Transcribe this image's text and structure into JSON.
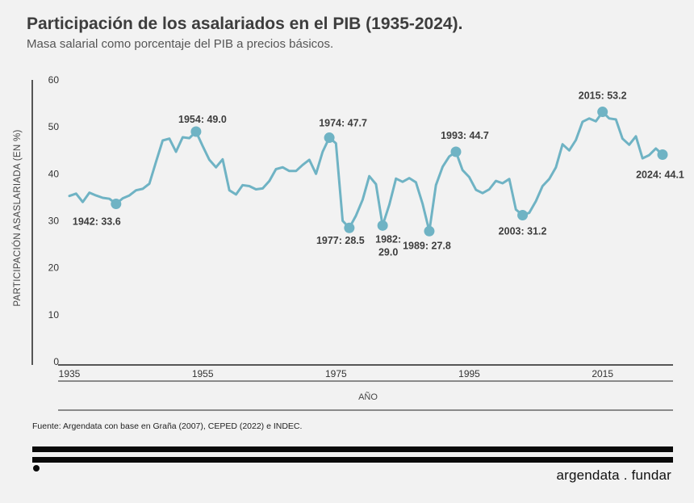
{
  "header": {
    "title": "Participación de los asalariados en el PIB (1935-2024).",
    "subtitle": "Masa salarial como porcentaje del PIB a precios básicos."
  },
  "footer": {
    "source": "Fuente: Argendata con base en Graña (2007), CEPED (2022) e INDEC.",
    "brand": "argendata . fundar"
  },
  "colors": {
    "line": "#6fb3c4",
    "marker": "#6fb3c4",
    "text": "#3d3d3d",
    "axis": "#222222"
  },
  "chart_data": {
    "type": "line",
    "xlabel": "AÑO",
    "ylabel": "PARTICIPACIÓN ASASLARIADA  (EN %)",
    "ylim": [
      0,
      60
    ],
    "xlim": [
      1935,
      2024
    ],
    "yticks": [
      0,
      10,
      20,
      30,
      40,
      50,
      60
    ],
    "xticks": [
      1935,
      1955,
      1975,
      1995,
      2015
    ],
    "grid": false,
    "series": [
      {
        "x": [
          1935,
          1936,
          1937,
          1938,
          1939,
          1940,
          1941,
          1942,
          1943,
          1944,
          1945,
          1946,
          1947,
          1948,
          1949,
          1950,
          1951,
          1952,
          1953,
          1954,
          1955,
          1956,
          1957,
          1958,
          1959,
          1960,
          1961,
          1962,
          1963,
          1964,
          1965,
          1966,
          1967,
          1968,
          1969,
          1970,
          1971,
          1972,
          1973,
          1974,
          1975,
          1976,
          1977,
          1978,
          1979,
          1980,
          1981,
          1982,
          1983,
          1984,
          1985,
          1986,
          1987,
          1988,
          1989,
          1990,
          1991,
          1992,
          1993,
          1994,
          1995,
          1996,
          1997,
          1998,
          1999,
          2000,
          2001,
          2002,
          2003,
          2004,
          2005,
          2006,
          2007,
          2008,
          2009,
          2010,
          2011,
          2012,
          2013,
          2014,
          2015,
          2016,
          2017,
          2018,
          2019,
          2020,
          2021,
          2022,
          2023,
          2024
        ],
        "values": [
          35.3,
          35.8,
          34.0,
          36.0,
          35.4,
          34.9,
          34.7,
          33.6,
          34.8,
          35.4,
          36.5,
          36.8,
          37.9,
          42.6,
          47.1,
          47.5,
          44.7,
          47.8,
          47.6,
          49.0,
          45.9,
          43.0,
          41.4,
          43.1,
          36.5,
          35.6,
          37.6,
          37.4,
          36.7,
          36.9,
          38.5,
          41.0,
          41.4,
          40.6,
          40.6,
          41.9,
          43.0,
          40.0,
          44.7,
          47.7,
          46.5,
          30.0,
          28.5,
          31.1,
          34.5,
          39.5,
          37.8,
          29.0,
          33.4,
          39.0,
          38.3,
          39.1,
          38.2,
          33.6,
          27.8,
          37.6,
          41.5,
          43.7,
          44.7,
          40.8,
          39.3,
          36.6,
          35.9,
          36.7,
          38.5,
          38.0,
          38.9,
          32.4,
          31.2,
          31.7,
          34.2,
          37.4,
          38.9,
          41.4,
          46.3,
          45.0,
          47.2,
          51.1,
          51.8,
          51.2,
          53.2,
          51.8,
          51.6,
          47.5,
          46.2,
          48.0,
          43.3,
          44.0,
          45.4,
          44.1
        ]
      }
    ],
    "annotations": [
      {
        "year": 1942,
        "value": 33.6,
        "text": "1942:  33.6"
      },
      {
        "year": 1954,
        "value": 49.0,
        "text": "1954:  49.0"
      },
      {
        "year": 1974,
        "value": 47.7,
        "text": "1974:  47.7"
      },
      {
        "year": 1977,
        "value": 28.5,
        "text": "1977:  28.5"
      },
      {
        "year": 1982,
        "value": 29.0,
        "text": "1982:",
        "text2": "29.0"
      },
      {
        "year": 1989,
        "value": 27.8,
        "text": "1989:  27.8"
      },
      {
        "year": 1993,
        "value": 44.7,
        "text": "1993:  44.7"
      },
      {
        "year": 2003,
        "value": 31.2,
        "text": "2003:  31.2"
      },
      {
        "year": 2015,
        "value": 53.2,
        "text": "2015:  53.2"
      },
      {
        "year": 2024,
        "value": 44.1,
        "text": "2024: 44.1"
      }
    ]
  }
}
